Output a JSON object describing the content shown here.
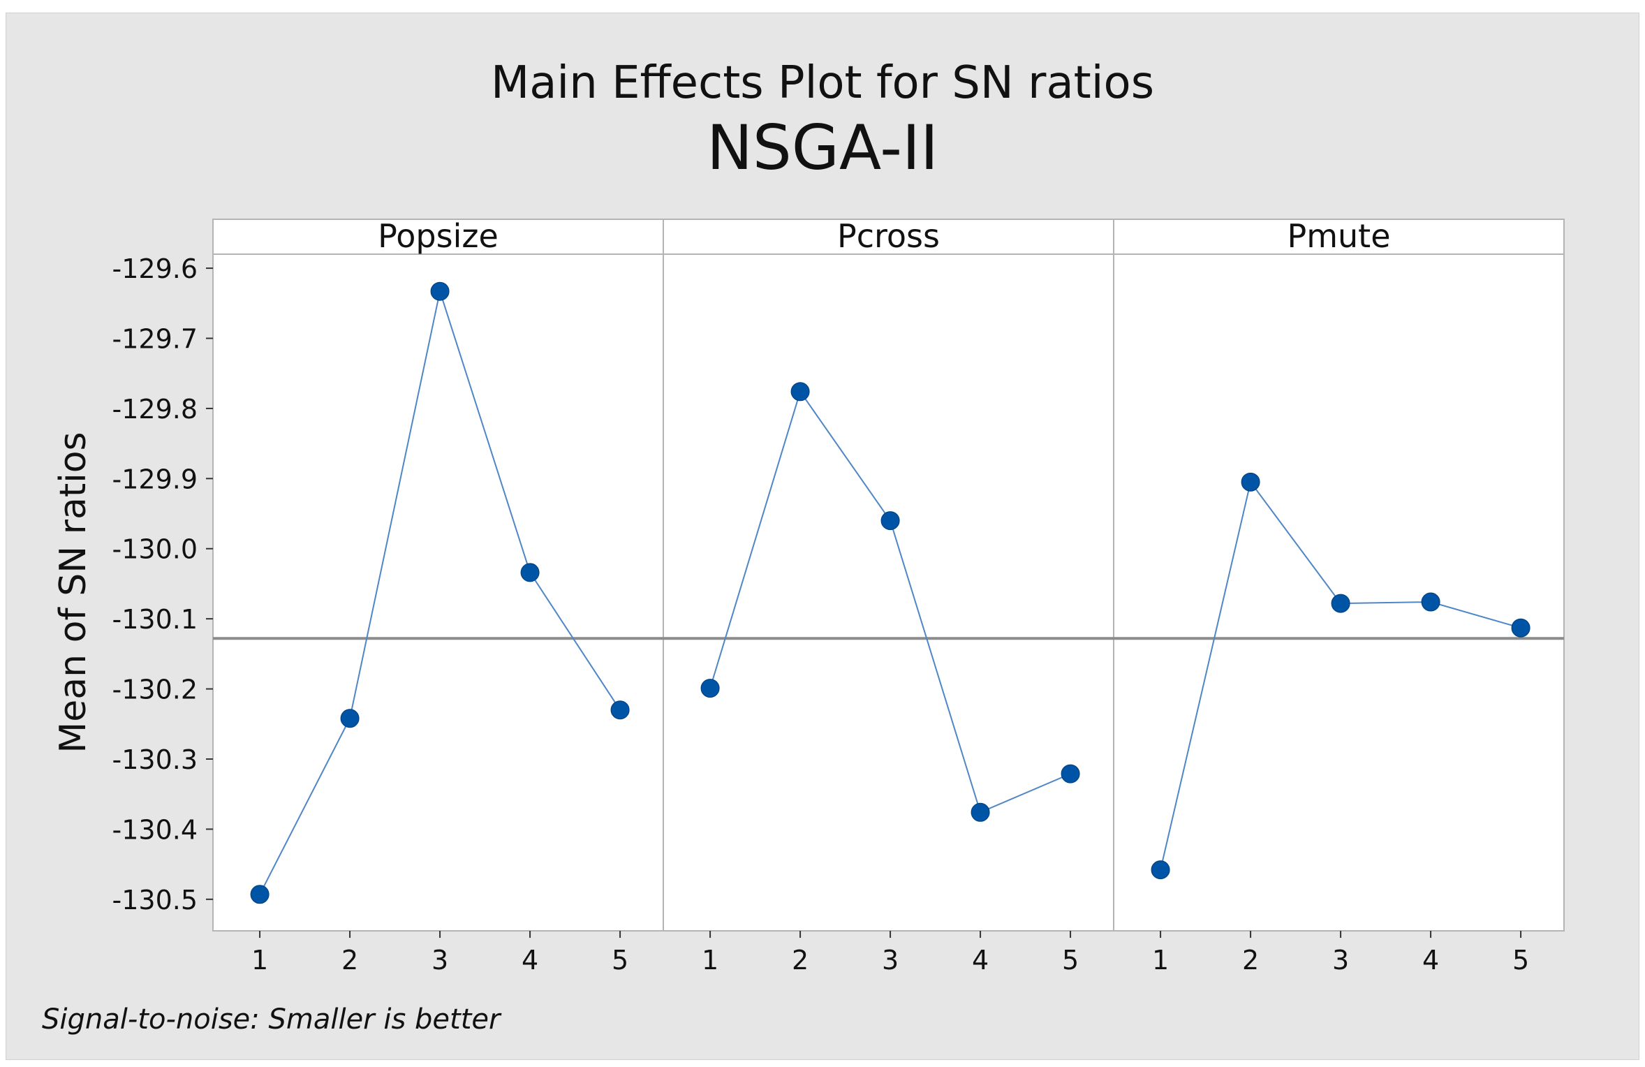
{
  "chart_data": {
    "type": "line",
    "title": "Main Effects Plot for SN ratios",
    "subtitle": "NSGA-II",
    "ylabel": "Mean of SN ratios",
    "ylim": [
      -130.545,
      -129.58
    ],
    "yticks": [
      "-129.6",
      "-129.7",
      "-129.8",
      "-129.9",
      "-130.0",
      "-130.1",
      "-130.2",
      "-130.3",
      "-130.4",
      "-130.5"
    ],
    "ytick_values": [
      -129.6,
      -129.7,
      -129.8,
      -129.9,
      -130.0,
      -130.1,
      -130.2,
      -130.3,
      -130.4,
      -130.5
    ],
    "reference_line": -130.128,
    "grid": false,
    "panels": [
      {
        "name": "Popsize",
        "x": [
          "1",
          "2",
          "3",
          "4",
          "5"
        ],
        "values": [
          -130.493,
          -130.242,
          -129.633,
          -130.034,
          -130.23
        ]
      },
      {
        "name": "Pcross",
        "x": [
          "1",
          "2",
          "3",
          "4",
          "5"
        ],
        "values": [
          -130.199,
          -129.776,
          -129.96,
          -130.376,
          -130.321
        ]
      },
      {
        "name": "Pmute",
        "x": [
          "1",
          "2",
          "3",
          "4",
          "5"
        ],
        "values": [
          -130.458,
          -129.905,
          -130.078,
          -130.076,
          -130.113
        ]
      }
    ],
    "colors": {
      "series": "#0054a6",
      "line": "#4f86c6",
      "reference": "#8c8c8c",
      "panel_border": "#b4b4b4"
    },
    "footnote": "Signal-to-noise: Smaller is better"
  }
}
